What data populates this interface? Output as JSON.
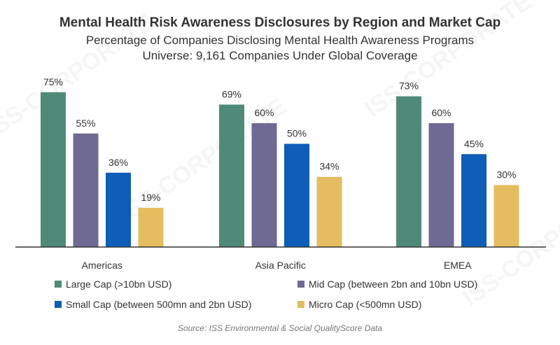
{
  "chart_data": {
    "type": "bar",
    "title": "Mental Health Risk Awareness Disclosures by Region and Market Cap",
    "subtitle_line1": "Percentage of Companies Disclosing Mental Health Awareness Programs",
    "subtitle_line2": "Universe: 9,161 Companies Under Global Coverage",
    "categories": [
      "Americas",
      "Asia Pacific",
      "EMEA"
    ],
    "series": [
      {
        "name": "Large Cap (>10bn USD)",
        "color": "#4f8a78",
        "values": [
          75,
          69,
          73
        ]
      },
      {
        "name": "Mid Cap (between 2bn and 10bn USD)",
        "color": "#6f6a93",
        "values": [
          55,
          60,
          60
        ]
      },
      {
        "name": "Small Cap (between 500mn and 2bn USD)",
        "color": "#0e5db6",
        "values": [
          36,
          50,
          45
        ]
      },
      {
        "name": "Micro Cap (<500mn USD)",
        "color": "#e3bd5f",
        "values": [
          19,
          34,
          30
        ]
      }
    ],
    "value_suffix": "%",
    "ylim": [
      0,
      100
    ],
    "grid": false,
    "legend_position": "bottom",
    "source": "Source: ISS Environmental & Social QualityScore Data"
  },
  "watermark_text": "ISS-CORPORATE"
}
